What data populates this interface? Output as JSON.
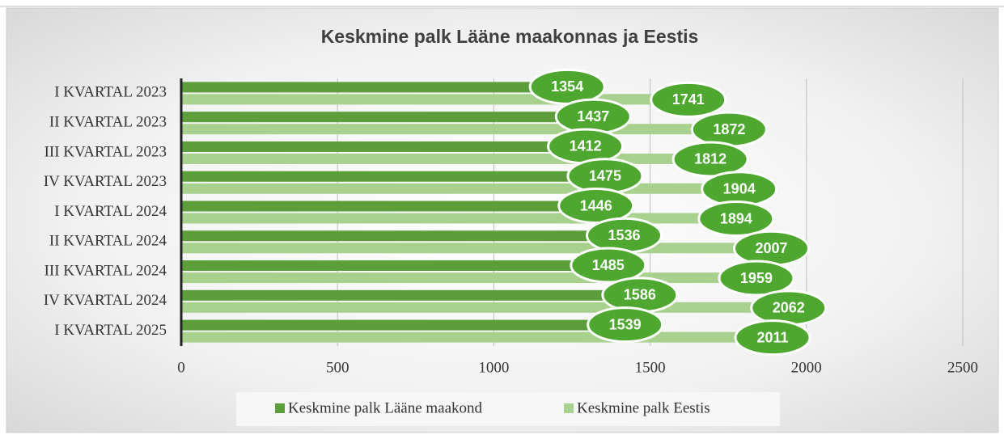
{
  "chart_data": {
    "type": "hbar",
    "title": "Keskmine palk Lääne maakonnas ja Eestis",
    "categories": [
      "I KVARTAL 2023",
      "II KVARTAL 2023",
      "III KVARTAL 2023",
      "IV KVARTAL 2023",
      "I KVARTAL 2024",
      "II KVARTAL 2024",
      "III KVARTAL 2024",
      "IV KVARTAL 2024",
      "I KVARTAL 2025"
    ],
    "series": [
      {
        "name": "Keskmine palk Lääne maakond",
        "color": "#5b9e3a",
        "values": [
          1354,
          1437,
          1412,
          1475,
          1446,
          1536,
          1485,
          1586,
          1539
        ]
      },
      {
        "name": "Keskmine palk Eestis",
        "color": "#a9d18e",
        "values": [
          1741,
          1872,
          1812,
          1904,
          1894,
          2007,
          1959,
          2062,
          2011
        ]
      }
    ],
    "label_color": "#4ea72e",
    "xlim": [
      0,
      2500
    ],
    "xticks": [
      0,
      500,
      1000,
      1500,
      2000,
      2500
    ],
    "grid": true,
    "legend": "bottom"
  }
}
